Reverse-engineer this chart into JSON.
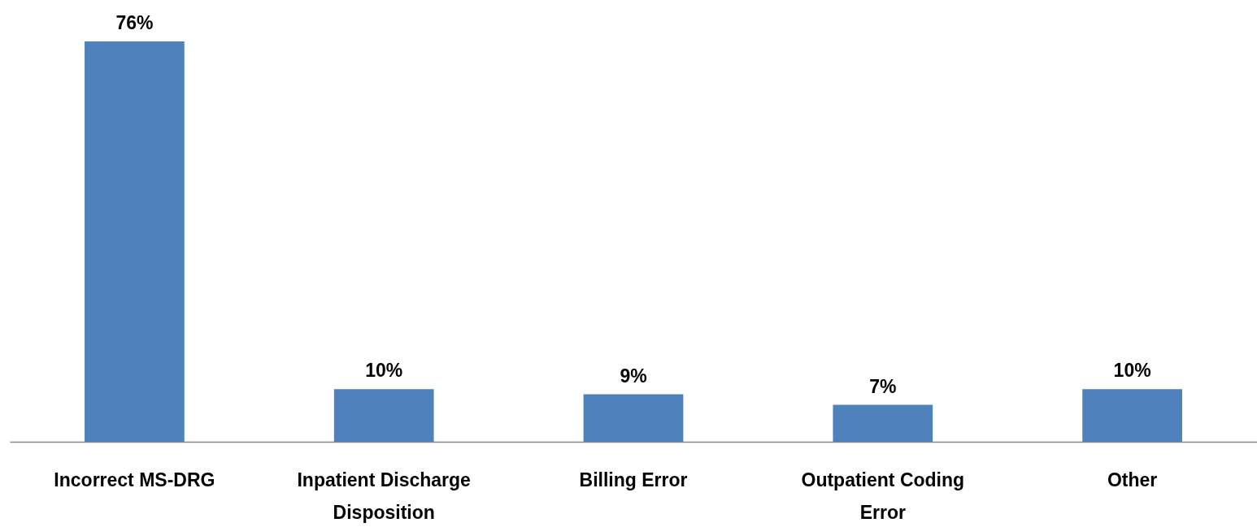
{
  "chart_data": {
    "type": "bar",
    "categories": [
      "Incorrect MS-DRG",
      "Inpatient Discharge Disposition",
      "Billing Error",
      "Outpatient Coding Error",
      "Other"
    ],
    "values": [
      76,
      10,
      9,
      7,
      10
    ],
    "value_labels": [
      "76%",
      "10%",
      "9%",
      "7%",
      "10%"
    ],
    "color": "#4f81bd"
  }
}
